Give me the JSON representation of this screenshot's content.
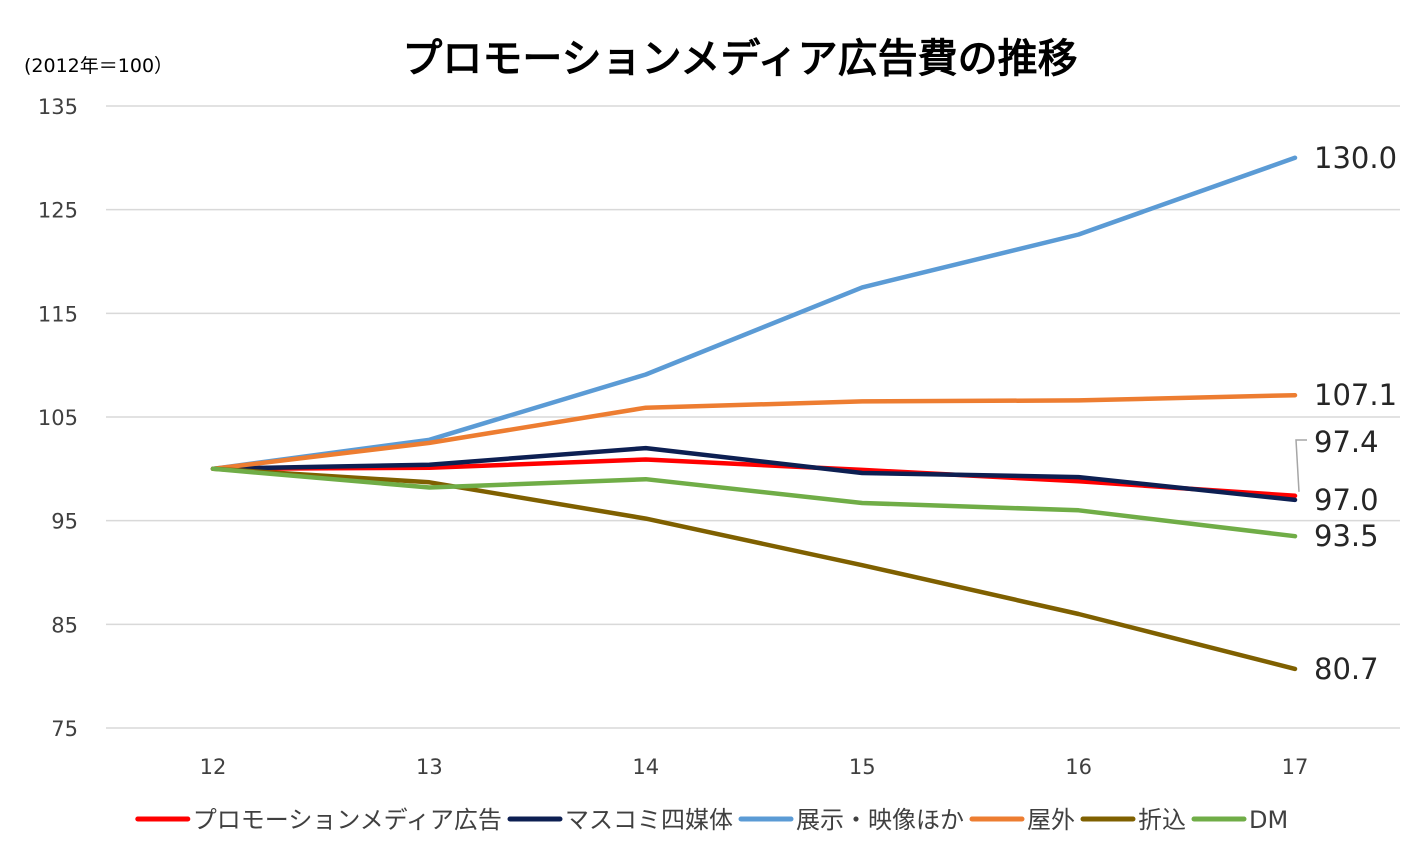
{
  "chart_data": {
    "type": "line",
    "title": "プロモーションメディア広告費の推移",
    "unit_note": "(2012年＝100）",
    "categories": [
      "12",
      "13",
      "14",
      "15",
      "16",
      "17"
    ],
    "ylim": [
      75,
      135
    ],
    "yticks": [
      75,
      85,
      95,
      105,
      115,
      125,
      135
    ],
    "grid": true,
    "legend_position": "bottom",
    "series": [
      {
        "name": "プロモーションメディア広告",
        "color": "#ff0000",
        "values": [
          100.0,
          100.1,
          100.9,
          99.9,
          98.8,
          97.4
        ],
        "end_label": "97.4"
      },
      {
        "name": "マスコミ四媒体",
        "color": "#0d1f52",
        "values": [
          100.0,
          100.4,
          102.0,
          99.6,
          99.2,
          97.0
        ],
        "end_label": "97.0"
      },
      {
        "name": "展示・映像ほか",
        "color": "#5b9bd5",
        "values": [
          100.0,
          102.8,
          109.1,
          117.5,
          122.6,
          130.0
        ],
        "end_label": "130.0"
      },
      {
        "name": "屋外",
        "color": "#ed7d31",
        "values": [
          100.0,
          102.5,
          105.9,
          106.5,
          106.6,
          107.1
        ],
        "end_label": "107.1"
      },
      {
        "name": "折込",
        "color": "#7f6000",
        "values": [
          100.0,
          98.7,
          95.2,
          90.7,
          86.0,
          80.7
        ],
        "end_label": "80.7"
      },
      {
        "name": "DM",
        "color": "#70ad47",
        "values": [
          100.0,
          98.2,
          99.0,
          96.7,
          96.0,
          93.5
        ],
        "end_label": "93.5"
      }
    ]
  }
}
